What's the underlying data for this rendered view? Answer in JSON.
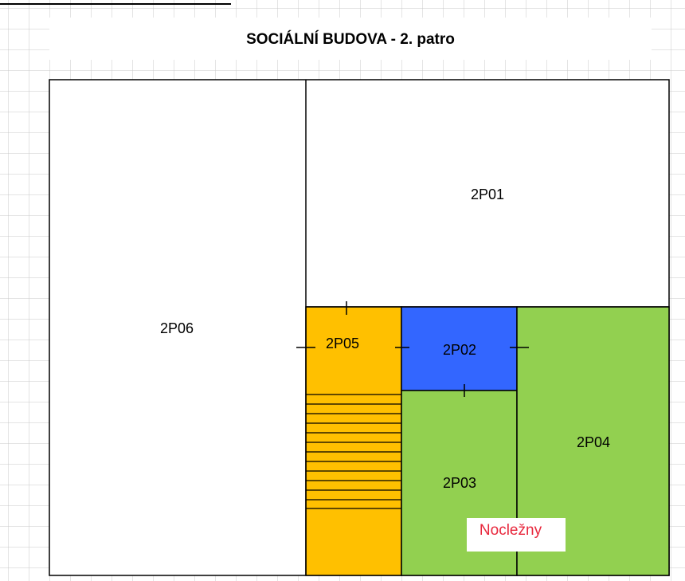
{
  "title": "SOCIÁLNÍ BUDOVA - 2. patro",
  "rooms": [
    {
      "label": "2P01"
    },
    {
      "label": "2P06"
    },
    {
      "label": "2P05"
    },
    {
      "label": "2P02"
    },
    {
      "label": "2P03"
    },
    {
      "label": "2P04"
    }
  ],
  "annotation": "Nocležny"
}
